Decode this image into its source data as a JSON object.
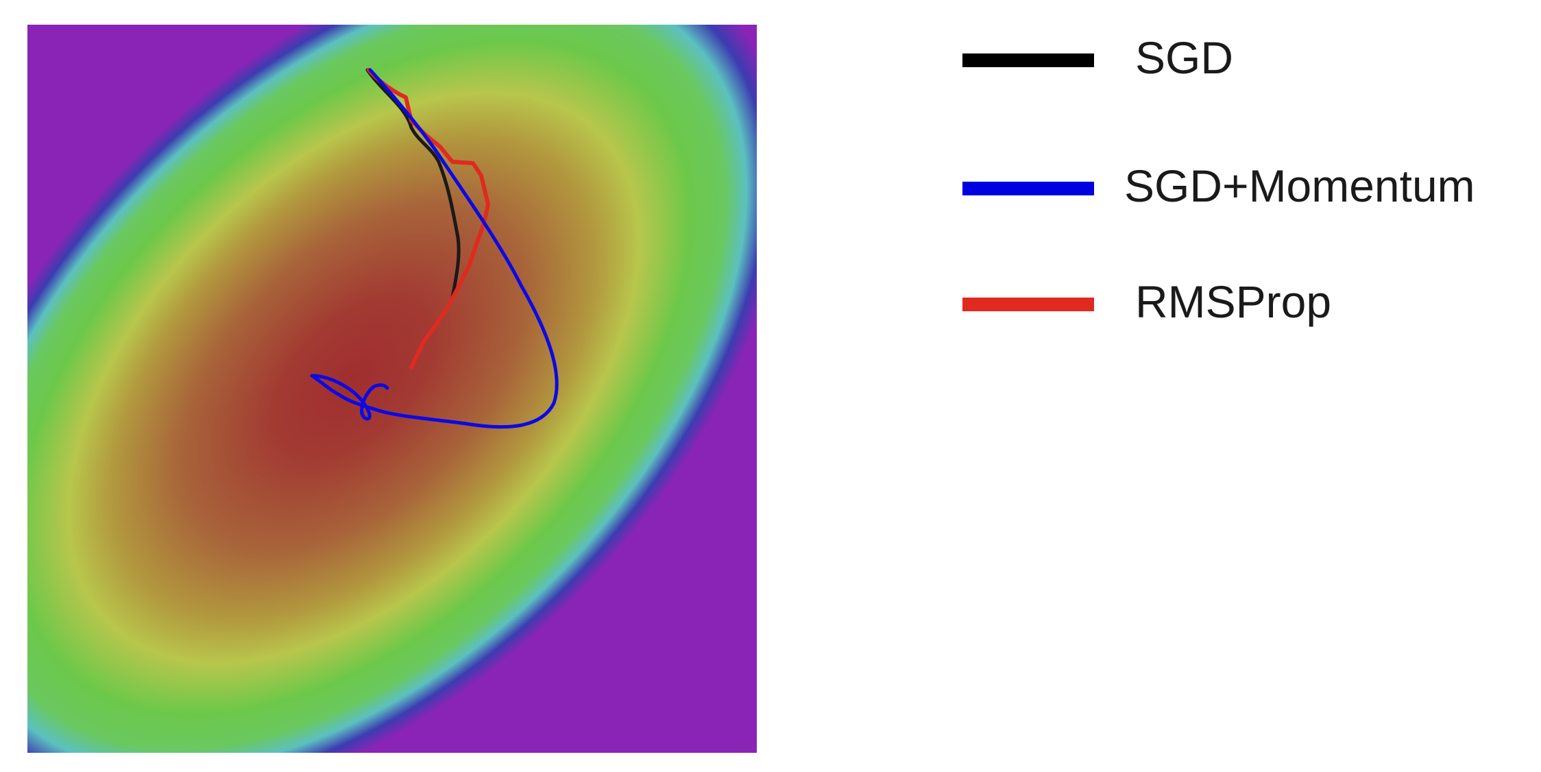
{
  "figure": {
    "type": "optimizer-trajectories-on-loss-contour",
    "colormap": [
      "#8a1fb6",
      "#3a2fb0",
      "#5bbfc4",
      "#6cc84a",
      "#b9c84a",
      "#b07a3c",
      "#a13a32"
    ],
    "legend": [
      {
        "label": "SGD",
        "color": "#000000"
      },
      {
        "label": "SGD+Momentum",
        "color": "#0000e0"
      },
      {
        "label": "RMSProp",
        "color": "#e02a20"
      }
    ]
  }
}
